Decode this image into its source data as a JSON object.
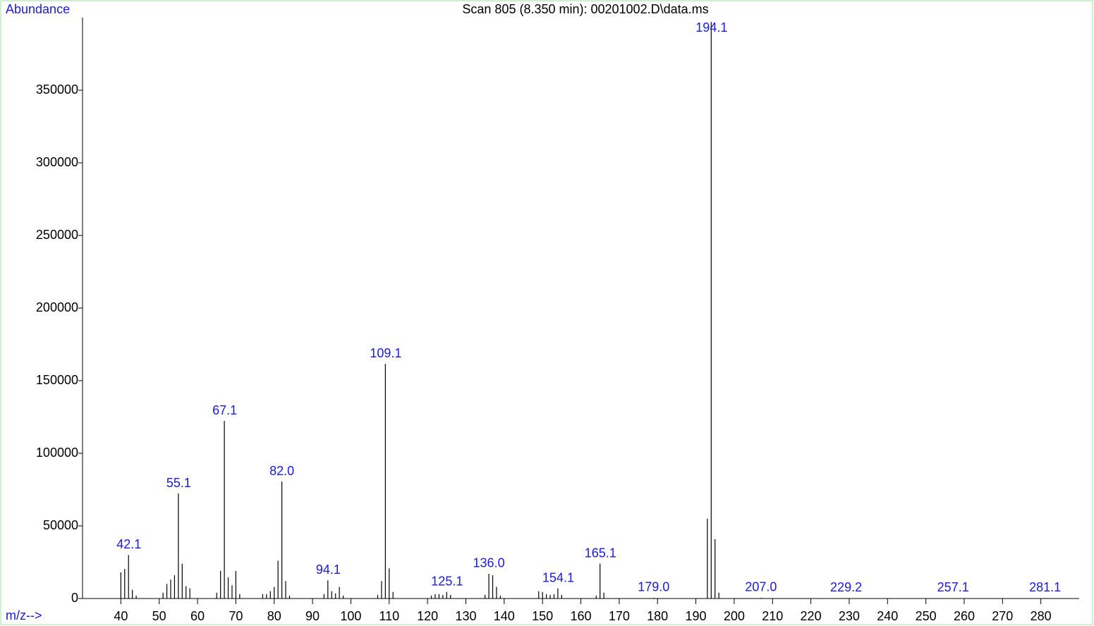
{
  "chart_data": {
    "type": "spectrum",
    "title": "Scan 805 (8.350 min): 00201002.D\\data.ms",
    "y_label": "Abundance",
    "x_label": "m/z-->",
    "color": "#000000",
    "label_color": "#1a1adc",
    "x": [
      40,
      41,
      42,
      43,
      44,
      51,
      52,
      53,
      54,
      55,
      56,
      57,
      58,
      65,
      66,
      67,
      68,
      69,
      70,
      71,
      77,
      78,
      79,
      80,
      81,
      82,
      83,
      84,
      93,
      94,
      95,
      96,
      97,
      98,
      107,
      108,
      109,
      110,
      111,
      121,
      122,
      123,
      124,
      125,
      126,
      135,
      136,
      137,
      138,
      139,
      149,
      150,
      151,
      152,
      153,
      154,
      155,
      164,
      165,
      166,
      179,
      193,
      194,
      195,
      196,
      207,
      229,
      257,
      281
    ],
    "values": [
      18000,
      20400,
      30000,
      6000,
      2000,
      4000,
      10000,
      13000,
      16000,
      72300,
      24000,
      8500,
      7000,
      4000,
      19000,
      122300,
      14500,
      9000,
      19000,
      3000,
      3000,
      3000,
      5000,
      8000,
      26000,
      80500,
      12000,
      2000,
      3000,
      12500,
      5000,
      3500,
      8000,
      2000,
      2500,
      12000,
      161600,
      20800,
      4500,
      2000,
      3000,
      3000,
      2500,
      4500,
      2500,
      2500,
      17000,
      16000,
      8000,
      2000,
      5000,
      4500,
      3000,
      2500,
      3000,
      7000,
      2500,
      2000,
      24000,
      4000,
      500,
      55000,
      397000,
      40800,
      4000,
      500,
      300,
      300,
      300
    ],
    "peak_labels": [
      42.1,
      55.1,
      67.1,
      {
        "value": 82,
        "label": "82.0"
      },
      94.1,
      109.1,
      125.1,
      {
        "value": 136,
        "label": "136.0"
      },
      154.1,
      165.1,
      {
        "value": 179,
        "label": "179.0"
      },
      194.1,
      {
        "value": 207,
        "label": "207.0"
      },
      229.2,
      257.1,
      281.1
    ],
    "xlim": [
      30,
      290
    ],
    "ylim": [
      0,
      400000
    ],
    "xticks": [
      40,
      50,
      60,
      70,
      80,
      90,
      100,
      110,
      120,
      130,
      140,
      150,
      160,
      170,
      180,
      190,
      200,
      210,
      220,
      230,
      240,
      250,
      260,
      270,
      280
    ],
    "yticks": [
      0,
      50000,
      100000,
      150000,
      200000,
      250000,
      300000,
      350000
    ]
  }
}
